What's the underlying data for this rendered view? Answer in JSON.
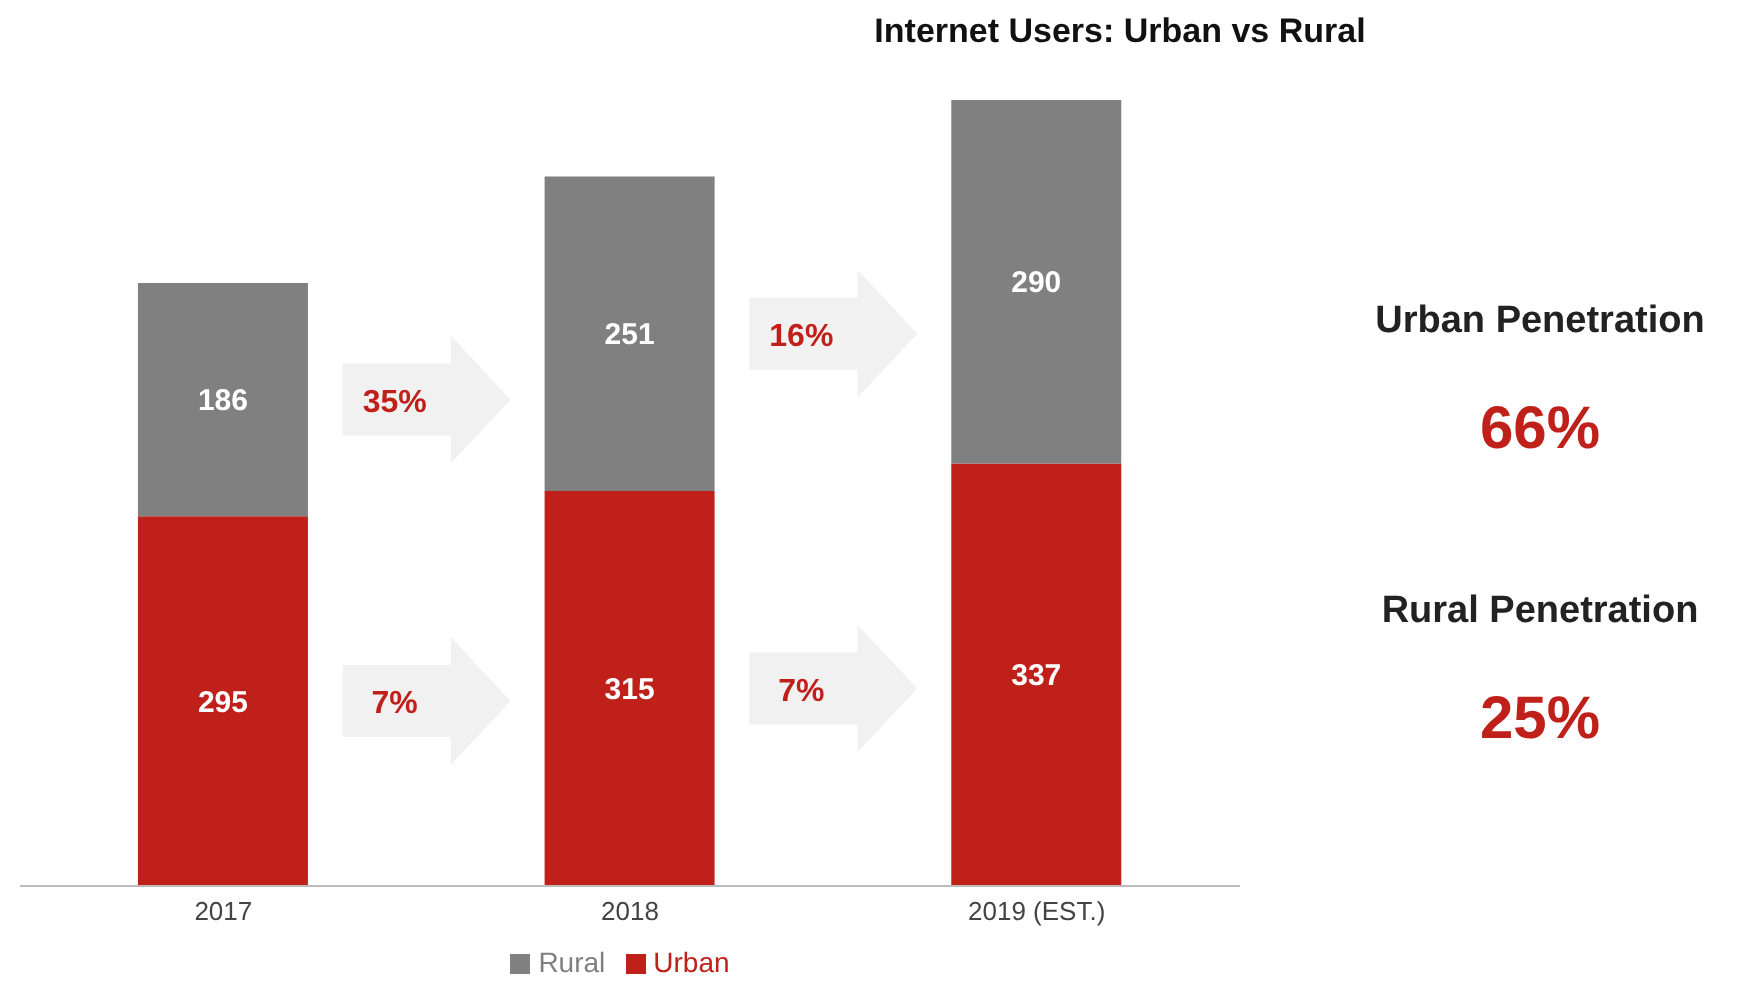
{
  "chart_data": {
    "type": "bar",
    "title": "Internet Users: Urban vs Rural",
    "categories": [
      "2017",
      "2018",
      "2019 (EST.)"
    ],
    "stacked": true,
    "data_labels": true,
    "legend": "bottom",
    "grid": false,
    "series": [
      {
        "name": "Urban",
        "color": "#c0201a",
        "values": [
          295,
          315,
          337
        ]
      },
      {
        "name": "Rural",
        "color": "#808080",
        "values": [
          186,
          251,
          290
        ]
      }
    ],
    "annotations": [
      "35%",
      "16%",
      "7%",
      "7%",
      "Urban Penetration",
      "66%",
      "Rural Penetration",
      "25%"
    ]
  }
}
